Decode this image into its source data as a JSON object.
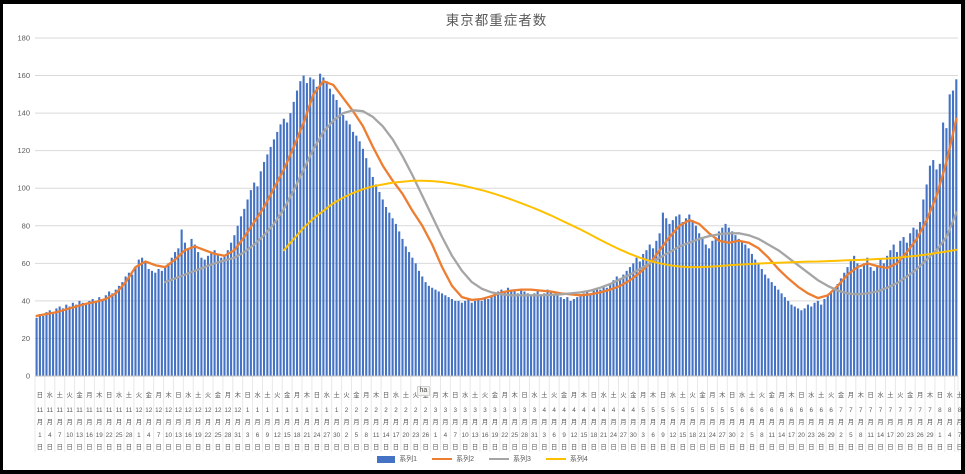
{
  "title": "東京都重症者数",
  "artifact_text": "ha",
  "y_axis": {
    "min": 0,
    "max": 180,
    "step": 20,
    "ticks": [
      0,
      20,
      40,
      60,
      80,
      100,
      120,
      140,
      160,
      180
    ]
  },
  "x_axis": {
    "month_suffix": "月",
    "day_suffix": "日",
    "labels": [
      [
        "日",
        "11",
        "1"
      ],
      [
        "水",
        "11",
        "4"
      ],
      [
        "土",
        "11",
        "7"
      ],
      [
        "火",
        "11",
        "10"
      ],
      [
        "金",
        "11",
        "13"
      ],
      [
        "月",
        "11",
        "16"
      ],
      [
        "木",
        "11",
        "19"
      ],
      [
        "日",
        "11",
        "22"
      ],
      [
        "水",
        "11",
        "25"
      ],
      [
        "土",
        "11",
        "28"
      ],
      [
        "火",
        "12",
        "1"
      ],
      [
        "金",
        "12",
        "4"
      ],
      [
        "月",
        "12",
        "7"
      ],
      [
        "木",
        "12",
        "10"
      ],
      [
        "日",
        "12",
        "13"
      ],
      [
        "水",
        "12",
        "16"
      ],
      [
        "土",
        "12",
        "19"
      ],
      [
        "火",
        "12",
        "22"
      ],
      [
        "金",
        "12",
        "25"
      ],
      [
        "月",
        "12",
        "28"
      ],
      [
        "木",
        "12",
        "31"
      ],
      [
        "日",
        "1",
        "3"
      ],
      [
        "水",
        "1",
        "6"
      ],
      [
        "土",
        "1",
        "9"
      ],
      [
        "火",
        "1",
        "12"
      ],
      [
        "金",
        "1",
        "15"
      ],
      [
        "月",
        "1",
        "18"
      ],
      [
        "木",
        "1",
        "21"
      ],
      [
        "日",
        "1",
        "24"
      ],
      [
        "水",
        "1",
        "27"
      ],
      [
        "土",
        "1",
        "30"
      ],
      [
        "火",
        "2",
        "2"
      ],
      [
        "金",
        "2",
        "5"
      ],
      [
        "月",
        "2",
        "8"
      ],
      [
        "木",
        "2",
        "11"
      ],
      [
        "日",
        "2",
        "14"
      ],
      [
        "水",
        "2",
        "17"
      ],
      [
        "土",
        "2",
        "20"
      ],
      [
        "火",
        "2",
        "23"
      ],
      [
        "金",
        "2",
        "26"
      ],
      [
        "月",
        "3",
        "1"
      ],
      [
        "木",
        "3",
        "4"
      ],
      [
        "日",
        "3",
        "7"
      ],
      [
        "水",
        "3",
        "10"
      ],
      [
        "土",
        "3",
        "13"
      ],
      [
        "火",
        "3",
        "16"
      ],
      [
        "金",
        "3",
        "19"
      ],
      [
        "月",
        "3",
        "22"
      ],
      [
        "木",
        "3",
        "25"
      ],
      [
        "日",
        "3",
        "28"
      ],
      [
        "水",
        "3",
        "31"
      ],
      [
        "土",
        "4",
        "3"
      ],
      [
        "火",
        "4",
        "6"
      ],
      [
        "金",
        "4",
        "9"
      ],
      [
        "月",
        "4",
        "12"
      ],
      [
        "木",
        "4",
        "15"
      ],
      [
        "日",
        "4",
        "18"
      ],
      [
        "水",
        "4",
        "21"
      ],
      [
        "土",
        "4",
        "24"
      ],
      [
        "火",
        "4",
        "27"
      ],
      [
        "金",
        "4",
        "30"
      ],
      [
        "月",
        "5",
        "3"
      ],
      [
        "木",
        "5",
        "6"
      ],
      [
        "日",
        "5",
        "9"
      ],
      [
        "水",
        "5",
        "12"
      ],
      [
        "土",
        "5",
        "15"
      ],
      [
        "火",
        "5",
        "18"
      ],
      [
        "金",
        "5",
        "21"
      ],
      [
        "月",
        "5",
        "24"
      ],
      [
        "木",
        "5",
        "27"
      ],
      [
        "日",
        "5",
        "30"
      ],
      [
        "水",
        "6",
        "2"
      ],
      [
        "土",
        "6",
        "5"
      ],
      [
        "火",
        "6",
        "8"
      ],
      [
        "金",
        "6",
        "11"
      ],
      [
        "月",
        "6",
        "14"
      ],
      [
        "木",
        "6",
        "17"
      ],
      [
        "日",
        "6",
        "20"
      ],
      [
        "水",
        "6",
        "23"
      ],
      [
        "土",
        "6",
        "26"
      ],
      [
        "火",
        "6",
        "29"
      ],
      [
        "金",
        "7",
        "2"
      ],
      [
        "月",
        "7",
        "5"
      ],
      [
        "木",
        "7",
        "8"
      ],
      [
        "日",
        "7",
        "11"
      ],
      [
        "水",
        "7",
        "14"
      ],
      [
        "土",
        "7",
        "17"
      ],
      [
        "火",
        "7",
        "20"
      ],
      [
        "金",
        "7",
        "23"
      ],
      [
        "月",
        "7",
        "26"
      ],
      [
        "木",
        "7",
        "29"
      ],
      [
        "日",
        "8",
        "1"
      ],
      [
        "水",
        "8",
        "4"
      ],
      [
        "土",
        "8",
        "7"
      ]
    ]
  },
  "legend": [
    {
      "label": "系列1",
      "color": "#4472C4",
      "type": "bar"
    },
    {
      "label": "系列2",
      "color": "#ED7D31",
      "type": "line"
    },
    {
      "label": "系列3",
      "color": "#A5A5A5",
      "type": "line"
    },
    {
      "label": "系列4",
      "color": "#FFC000",
      "type": "line"
    }
  ],
  "colors": {
    "grid": "#D9D9D9",
    "axis": "#BFBFBF",
    "separator": "#E8E8E8",
    "text": "#595959"
  },
  "chart_data": {
    "type": "bar",
    "title": "東京都重症者数",
    "xlabel": "date (every 3 days shown, 2020/11/1 - 2021/8/7, 280 daily bars)",
    "ylabel": "",
    "ylim": [
      0,
      180
    ],
    "grid": true,
    "legend_position": "bottom",
    "series": [
      {
        "name": "系列1",
        "type": "bar",
        "color": "#4472C4",
        "start_day": 0,
        "step": 1,
        "values": [
          31,
          33,
          32,
          34,
          35,
          33,
          36,
          37,
          36,
          38,
          37,
          39,
          38,
          40,
          39,
          38,
          40,
          41,
          40,
          42,
          41,
          43,
          45,
          44,
          46,
          48,
          50,
          53,
          55,
          54,
          58,
          62,
          63,
          61,
          57,
          56,
          55,
          57,
          56,
          58,
          60,
          63,
          66,
          68,
          78,
          71,
          68,
          73,
          70,
          66,
          63,
          62,
          64,
          66,
          67,
          65,
          63,
          64,
          67,
          71,
          75,
          80,
          85,
          89,
          94,
          99,
          103,
          101,
          109,
          114,
          118,
          122,
          126,
          130,
          134,
          137,
          135,
          140,
          146,
          152,
          157,
          160,
          156,
          159,
          158,
          154,
          161,
          159,
          157,
          153,
          150,
          147,
          143,
          139,
          136,
          134,
          130,
          128,
          125,
          121,
          116,
          111,
          106,
          102,
          98,
          94,
          90,
          87,
          84,
          81,
          77,
          73,
          69,
          66,
          63,
          60,
          56,
          53,
          50,
          48,
          47,
          46,
          45,
          44,
          43,
          42,
          41,
          40,
          40,
          39,
          40,
          41,
          39,
          40,
          41,
          40,
          42,
          41,
          43,
          44,
          45,
          46,
          45,
          47,
          46,
          45,
          44,
          46,
          45,
          44,
          43,
          44,
          45,
          43,
          44,
          46,
          45,
          43,
          44,
          42,
          41,
          42,
          40,
          41,
          42,
          43,
          44,
          45,
          44,
          46,
          47,
          46,
          48,
          47,
          49,
          51,
          53,
          52,
          54,
          56,
          58,
          60,
          63,
          61,
          65,
          67,
          70,
          68,
          72,
          76,
          87,
          84,
          81,
          83,
          85,
          86,
          82,
          84,
          86,
          83,
          80,
          76,
          73,
          70,
          68,
          72,
          74,
          77,
          79,
          81,
          79,
          77,
          75,
          73,
          72,
          70,
          68,
          65,
          62,
          60,
          57,
          54,
          52,
          50,
          48,
          46,
          44,
          42,
          40,
          38,
          37,
          36,
          35,
          36,
          38,
          37,
          39,
          40,
          38,
          41,
          43,
          45,
          47,
          49,
          52,
          55,
          58,
          62,
          64,
          60,
          57,
          60,
          63,
          58,
          56,
          59,
          62,
          60,
          64,
          67,
          70,
          66,
          72,
          74,
          71,
          76,
          79,
          78,
          82,
          94,
          102,
          112,
          115,
          110,
          113,
          135,
          132,
          150,
          152,
          158
        ]
      },
      {
        "name": "系列2",
        "type": "line",
        "color": "#ED7D31",
        "start_day": 0,
        "step": 3,
        "values": [
          32,
          33,
          34,
          35.5,
          37,
          38.5,
          39.5,
          41,
          44,
          50,
          58,
          61,
          59,
          58,
          62,
          67,
          69,
          67,
          65,
          64,
          67,
          74,
          82,
          90,
          100,
          110,
          122,
          135,
          150,
          157,
          155,
          148,
          141,
          133,
          122,
          112,
          104,
          97,
          88,
          80,
          70,
          58,
          48,
          42,
          40.5,
          41,
          42.5,
          44.5,
          45.5,
          46,
          46,
          45.5,
          45,
          44,
          43.5,
          43,
          43.5,
          44.5,
          46,
          48,
          51,
          55,
          60,
          67,
          74,
          80,
          83,
          81,
          76,
          72,
          71,
          72,
          71,
          68,
          63,
          57,
          52,
          47.5,
          44,
          41.5,
          43,
          48,
          54,
          58,
          60,
          58.5,
          57.5,
          60,
          66,
          73,
          83,
          96,
          114,
          137
        ]
      },
      {
        "name": "系列3",
        "type": "line",
        "color": "#A5A5A5",
        "start_day": 39,
        "step": 3,
        "values": [
          50,
          52,
          54,
          56,
          58,
          60,
          61.5,
          63,
          66,
          70,
          75,
          81,
          89,
          99,
          110,
          121,
          130,
          136,
          140,
          141.5,
          141,
          138,
          133,
          126,
          117,
          107,
          96,
          85,
          74,
          64,
          56,
          50,
          46.5,
          44.5,
          43.5,
          43,
          43,
          43,
          43,
          43.2,
          43.5,
          44,
          44.5,
          45.5,
          47,
          49,
          51.5,
          54,
          57,
          60,
          63,
          66,
          69,
          71,
          73,
          74.5,
          75.5,
          76,
          76,
          75,
          73,
          70,
          67,
          63,
          59,
          55,
          51,
          48,
          45.5,
          44,
          43.5,
          44,
          45,
          47,
          49.5,
          53,
          57,
          62,
          67,
          74,
          87
        ]
      },
      {
        "name": "系列4",
        "type": "line",
        "color": "#FFC000",
        "start_day": 75,
        "step": 3,
        "values": [
          67,
          73,
          79,
          84,
          88,
          92,
          95,
          97.5,
          99.5,
          101,
          102,
          103,
          103.5,
          104,
          104,
          103.8,
          103.3,
          102.5,
          101.5,
          100.3,
          99,
          97.5,
          95.8,
          94,
          92,
          90,
          87.8,
          85.5,
          83,
          80.5,
          78,
          75.3,
          72.5,
          69.8,
          67.3,
          65,
          63,
          61.3,
          60,
          59,
          58.3,
          58,
          58,
          58.2,
          58.5,
          59,
          59.3,
          59.6,
          59.9,
          60.1,
          60.3,
          60.5,
          60.7,
          60.9,
          61,
          61.2,
          61.4,
          61.6,
          61.8,
          62,
          62.3,
          62.6,
          63,
          63.5,
          64,
          64.7,
          65.5,
          66.3,
          67.2
        ]
      }
    ]
  }
}
